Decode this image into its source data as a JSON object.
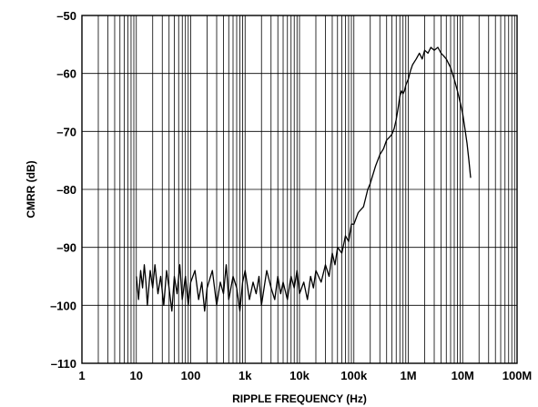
{
  "chart_data": {
    "type": "line",
    "title": "",
    "xlabel": "RIPPLE FREQUENCY (Hz)",
    "ylabel": "CMRR (dB)",
    "x_scale": "log",
    "xlim": [
      1,
      100000000
    ],
    "ylim": [
      -110,
      -50
    ],
    "grid": true,
    "x_tick_values": [
      1,
      10,
      100,
      1000,
      10000,
      100000,
      1000000,
      10000000,
      100000000
    ],
    "x_tick_labels": [
      "1",
      "10",
      "100",
      "1k",
      "10k",
      "100k",
      "1M",
      "10M",
      "100M"
    ],
    "y_tick_values": [
      -110,
      -100,
      -90,
      -80,
      -70,
      -60,
      -50
    ],
    "y_tick_labels": [
      "–110",
      "–100",
      "–90",
      "–80",
      "–70",
      "–60",
      "–50"
    ],
    "series": [
      {
        "name": "",
        "color": "#000000",
        "x": [
          10,
          11,
          12,
          13,
          14,
          15,
          16,
          18,
          20,
          22,
          25,
          28,
          32,
          36,
          40,
          45,
          50,
          56,
          63,
          70,
          80,
          90,
          100,
          120,
          140,
          160,
          180,
          200,
          250,
          300,
          350,
          400,
          450,
          500,
          600,
          700,
          800,
          900,
          1000,
          1200,
          1400,
          1600,
          1800,
          2000,
          2500,
          3000,
          3500,
          4000,
          4500,
          5000,
          6000,
          7000,
          8000,
          9000,
          10000,
          12000,
          14000,
          16000,
          18000,
          20000,
          25000,
          30000,
          35000,
          40000,
          45000,
          50000,
          60000,
          70000,
          80000,
          90000,
          100000,
          120000,
          150000,
          180000,
          200000,
          250000,
          300000,
          350000,
          400000,
          450000,
          500000,
          550000,
          600000,
          650000,
          700000,
          750000,
          800000,
          850000,
          900000,
          1000000,
          1100000,
          1200000,
          1400000,
          1600000,
          1800000,
          2000000,
          2300000,
          2600000,
          3000000,
          3500000,
          4000000,
          4500000,
          5000000,
          6000000,
          7000000,
          8000000,
          9000000,
          10000000,
          11000000,
          12000000,
          13000000,
          14000000
        ],
        "y": [
          -95,
          -99,
          -94,
          -97,
          -93,
          -96,
          -100,
          -94,
          -97,
          -93,
          -98,
          -95,
          -100,
          -94,
          -97,
          -101,
          -95,
          -98,
          -93,
          -99,
          -95,
          -100,
          -96,
          -94,
          -99,
          -96,
          -101,
          -97,
          -94,
          -100,
          -96,
          -98,
          -93,
          -99,
          -95,
          -97,
          -101,
          -96,
          -94,
          -99,
          -96,
          -98,
          -95,
          -100,
          -94,
          -97,
          -99,
          -95,
          -98,
          -96,
          -99,
          -95,
          -97,
          -94,
          -98,
          -96,
          -99,
          -95,
          -97,
          -94,
          -96,
          -93,
          -95,
          -91,
          -93,
          -90,
          -91,
          -88,
          -89,
          -86,
          -86,
          -84,
          -83,
          -80,
          -79,
          -76,
          -74,
          -73,
          -71.5,
          -71,
          -70.5,
          -69.5,
          -68,
          -66,
          -64,
          -63,
          -63.5,
          -63,
          -62,
          -61,
          -59.5,
          -58.5,
          -57.5,
          -56.5,
          -57.5,
          -56,
          -56.5,
          -55.5,
          -56,
          -55.5,
          -56.5,
          -57,
          -57.5,
          -59,
          -61,
          -63,
          -65,
          -67,
          -69.5,
          -72,
          -75,
          -78
        ]
      }
    ]
  }
}
